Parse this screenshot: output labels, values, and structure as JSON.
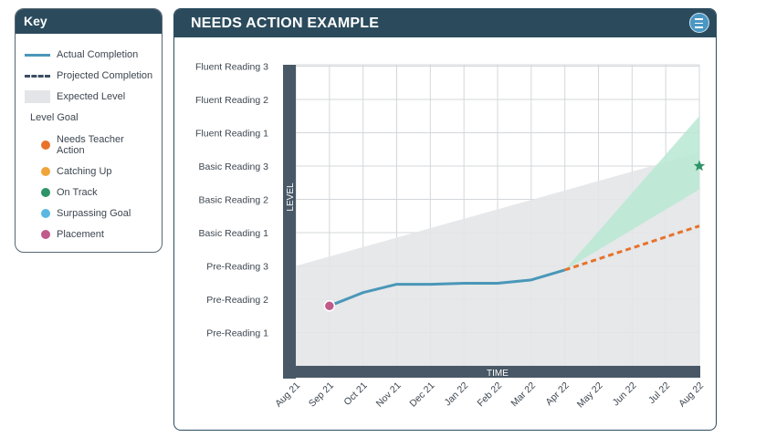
{
  "key": {
    "title": "Key",
    "actual": "Actual Completion",
    "projected": "Projected Completion",
    "expected": "Expected Level",
    "level_goal": "Level Goal",
    "goals": [
      {
        "label_lines": [
          "Needs Teacher",
          "Action"
        ],
        "color": "#e8722a"
      },
      {
        "label_lines": [
          "Catching Up"
        ],
        "color": "#f0a53a"
      },
      {
        "label_lines": [
          "On Track"
        ],
        "color": "#2e9467"
      },
      {
        "label_lines": [
          "Surpassing Goal"
        ],
        "color": "#5ab8e0"
      },
      {
        "label_lines": [
          "Placement"
        ],
        "color": "#c05a8a"
      }
    ]
  },
  "chart_data": {
    "type": "line",
    "title": "NEEDS ACTION EXAMPLE",
    "xlabel": "TIME",
    "ylabel": "LEVEL",
    "categories": [
      "Aug 21",
      "Sep 21",
      "Oct 21",
      "Nov 21",
      "Dec 21",
      "Jan 22",
      "Feb 22",
      "Mar 22",
      "Apr 22",
      "May 22",
      "Jun 22",
      "Jul 22",
      "Aug 22"
    ],
    "y_levels": [
      "Pre-Reading 1",
      "Pre-Reading 2",
      "Pre-Reading 3",
      "Basic Reading 1",
      "Basic Reading 2",
      "Basic Reading 3",
      "Fluent Reading 1",
      "Fluent Reading 2",
      "Fluent Reading 3"
    ],
    "ylim": [
      0,
      9
    ],
    "grid": true,
    "expected_level": {
      "x": [
        "Aug 21",
        "Aug 22"
      ],
      "low": [
        0,
        0
      ],
      "high": [
        3,
        6.4
      ]
    },
    "actual": {
      "x": [
        "Sep 21",
        "Oct 21",
        "Nov 21",
        "Dec 21",
        "Jan 22",
        "Feb 22",
        "Mar 22",
        "Apr 22"
      ],
      "y": [
        1.8,
        2.2,
        2.45,
        2.45,
        2.48,
        2.48,
        2.58,
        2.88
      ]
    },
    "projected": {
      "x": [
        "Apr 22",
        "Aug 22"
      ],
      "y": [
        2.88,
        4.2
      ]
    },
    "on_track_range": {
      "x": [
        "Apr 22",
        "Aug 22"
      ],
      "low": [
        2.88,
        5.3
      ],
      "high": [
        2.88,
        7.5
      ]
    },
    "placement": {
      "x": "Sep 21",
      "y": 1.8,
      "color": "#c05a8a"
    },
    "goal": {
      "x": "Aug 22",
      "y": 6.0,
      "color": "#2e9467"
    },
    "colors": {
      "actual": "#4a97b8",
      "projected": "#e8722a",
      "expected": "#e3e5e8",
      "range": "#b8e8d3",
      "axis_bar": "#485866"
    }
  }
}
